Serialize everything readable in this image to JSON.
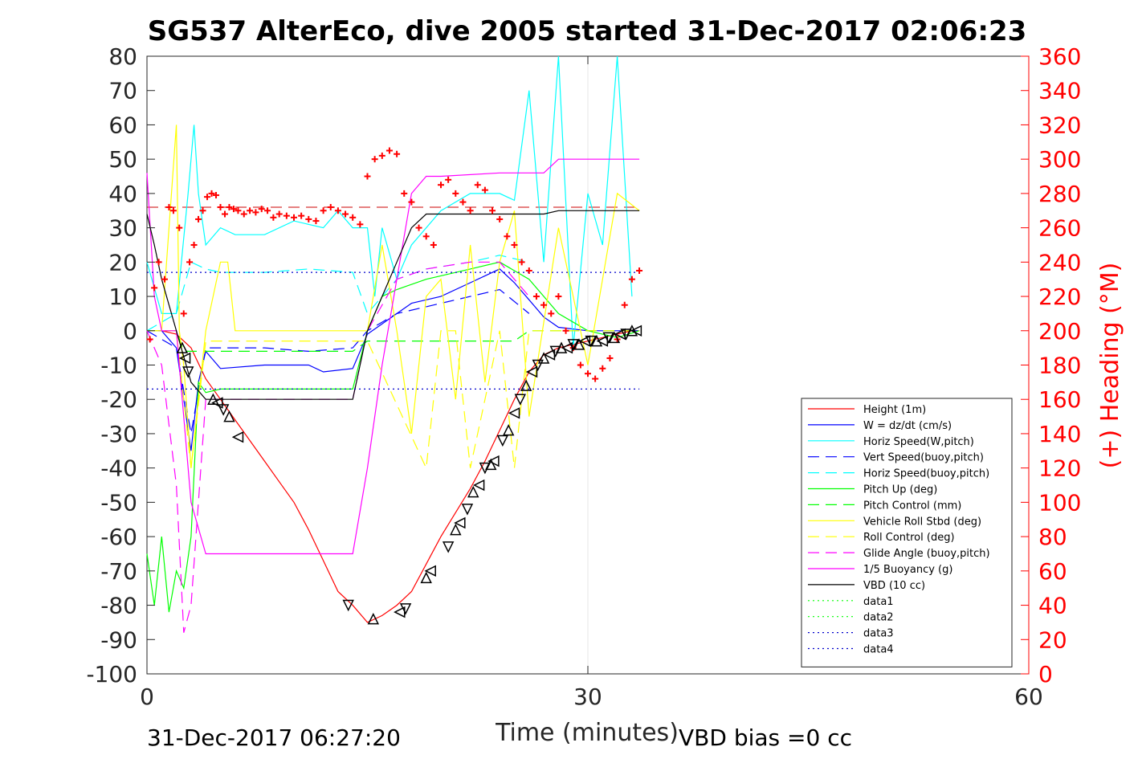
{
  "chart_data": {
    "type": "line",
    "title": "SG537 AlterEco, dive 2005 started 31-Dec-2017 02:06:23",
    "xlabel": "Time (minutes)",
    "ylabel_left": "",
    "ylabel_right": "(+) Heading (°M)",
    "xlim": [
      0,
      60
    ],
    "ylim_left": [
      -100,
      80
    ],
    "ylim_right": [
      0,
      360
    ],
    "x_ticks": [
      "0",
      "30",
      "60"
    ],
    "y_ticks_left": [
      "80",
      "70",
      "60",
      "50",
      "40",
      "30",
      "20",
      "10",
      "0",
      "-10",
      "-20",
      "-30",
      "-40",
      "-50",
      "-60",
      "-70",
      "-80",
      "-90",
      "-100"
    ],
    "y_ticks_right": [
      "360",
      "340",
      "320",
      "300",
      "280",
      "260",
      "240",
      "220",
      "200",
      "180",
      "160",
      "140",
      "120",
      "100",
      "80",
      "60",
      "40",
      "20",
      "0"
    ],
    "grid": "x-only",
    "footer_left": "31-Dec-2017 06:27:20",
    "footer_right": "VBD bias =0 cc",
    "legend_position": "lower-right",
    "series": [
      {
        "name": "Height (1m)",
        "color": "#ff0000",
        "style": "solid",
        "x": [
          0,
          1,
          2,
          3,
          4,
          5,
          6,
          7,
          8,
          9,
          10,
          11,
          12,
          13,
          14,
          15,
          16,
          17,
          18,
          19,
          20,
          21,
          22,
          23,
          24,
          25,
          26,
          27,
          28,
          29,
          30,
          31,
          32,
          33,
          33.5
        ],
        "y": [
          0,
          0,
          -1,
          -5,
          -14,
          -20,
          -26,
          -32,
          -38,
          -44,
          -50,
          -58,
          -67,
          -76,
          -80,
          -85,
          -83,
          -80,
          -76,
          -68,
          -60,
          -53,
          -46,
          -38,
          -29,
          -20,
          -12,
          -7,
          -5,
          -4,
          -3,
          -2,
          -1,
          0,
          0
        ]
      },
      {
        "name": "W = dz/dt (cm/s)",
        "color": "#0000ff",
        "style": "solid",
        "x": [
          0,
          1,
          2,
          2.5,
          3,
          3.5,
          4,
          5,
          8,
          11,
          12,
          14,
          15,
          16,
          17,
          18,
          20,
          22,
          24,
          25,
          26,
          27,
          28,
          30,
          32,
          33.5
        ],
        "y": [
          0,
          0,
          -5,
          -20,
          -35,
          -15,
          -6,
          -11,
          -10,
          -10,
          -12,
          -11,
          -1,
          2,
          5,
          8,
          10,
          14,
          18,
          14,
          9,
          4,
          1,
          0,
          0,
          0
        ]
      },
      {
        "name": "Horiz Speed(W,pitch)",
        "color": "#00ffff",
        "style": "solid",
        "x": [
          0,
          1,
          2,
          2.8,
          3.2,
          3.5,
          4,
          5,
          6,
          8,
          10,
          12,
          13,
          14,
          15,
          15.5,
          16,
          17,
          18,
          20,
          22,
          24,
          25,
          26,
          27,
          28,
          29,
          30,
          31,
          32,
          33
        ],
        "y": [
          20,
          5,
          5,
          40,
          60,
          40,
          25,
          30,
          28,
          28,
          32,
          30,
          35,
          30,
          30,
          10,
          30,
          15,
          25,
          35,
          40,
          40,
          38,
          70,
          20,
          80,
          -5,
          40,
          25,
          80,
          10
        ]
      },
      {
        "name": "Vert Speed(buoy,pitch)",
        "color": "#0000ff",
        "style": "dashed",
        "x": [
          0,
          2,
          3,
          4,
          5,
          8,
          11,
          14,
          15,
          17,
          19,
          22,
          24,
          26
        ],
        "y": [
          0,
          -5,
          -30,
          -5,
          -5,
          -5,
          -6,
          -5,
          0,
          5,
          7,
          10,
          12,
          5
        ]
      },
      {
        "name": "Horiz Speed(buoy,pitch)",
        "color": "#00ffff",
        "style": "dashed",
        "x": [
          0,
          2,
          3,
          4,
          5,
          8,
          11,
          14,
          15,
          17,
          19,
          22,
          24,
          26
        ],
        "y": [
          0,
          5,
          20,
          18,
          17,
          17,
          18,
          17,
          5,
          15,
          18,
          20,
          22,
          20
        ]
      },
      {
        "name": "Pitch Up (deg)",
        "color": "#00ff00",
        "style": "solid",
        "x": [
          0,
          0.5,
          1,
          1.5,
          2,
          2.5,
          3,
          3.5,
          4,
          5,
          8,
          11,
          14,
          15,
          16,
          17,
          19,
          22,
          24,
          26,
          28,
          30,
          32,
          33.5
        ],
        "y": [
          -65,
          -80,
          -60,
          -82,
          -70,
          -75,
          -60,
          -15,
          -18,
          -17,
          -17,
          -17,
          -17,
          0,
          10,
          12,
          15,
          18,
          20,
          15,
          5,
          0,
          -2,
          0
        ]
      },
      {
        "name": "Pitch Control (mm)",
        "color": "#00ff00",
        "style": "dashed",
        "x": [
          0,
          2,
          2.5,
          3,
          3.5,
          4,
          14,
          15,
          16,
          25,
          26,
          33.5
        ],
        "y": [
          0,
          0,
          -6,
          -6,
          -6,
          -6,
          -6,
          -3,
          -3,
          -3,
          0,
          0
        ]
      },
      {
        "name": "Vehicle Roll Stbd (deg)",
        "color": "#ffff00",
        "style": "solid",
        "x": [
          0,
          1,
          2,
          2.2,
          2.5,
          3,
          4,
          5,
          5.5,
          6,
          8,
          11,
          14,
          15,
          16,
          17,
          18,
          19,
          20,
          21,
          22,
          23,
          24,
          25,
          26,
          28,
          30,
          32,
          33.5
        ],
        "y": [
          0,
          0,
          60,
          0,
          -10,
          -40,
          0,
          20,
          20,
          0,
          0,
          0,
          0,
          0,
          25,
          0,
          -30,
          10,
          15,
          -20,
          25,
          -15,
          20,
          35,
          -25,
          30,
          -10,
          40,
          35
        ]
      },
      {
        "name": "Roll Control (deg)",
        "color": "#ffff00",
        "style": "dashed",
        "x": [
          0,
          2,
          3,
          4,
          14,
          15,
          19,
          20,
          21,
          22,
          24,
          25,
          26,
          33.5
        ],
        "y": [
          0,
          0,
          -40,
          -3,
          -3,
          -3,
          -40,
          0,
          0,
          -40,
          0,
          -40,
          0,
          0
        ]
      },
      {
        "name": "Glide Angle (buoy,pitch)",
        "color": "#ff00ff",
        "style": "dashed",
        "x": [
          0,
          1,
          2,
          2.5,
          3,
          4,
          8,
          11,
          14,
          15,
          17,
          19,
          22,
          24,
          26
        ],
        "y": [
          0,
          -10,
          -45,
          -88,
          -80,
          -20,
          -20,
          -20,
          -20,
          0,
          15,
          18,
          20,
          20,
          10
        ]
      },
      {
        "name": "1/5 Buoyancy (g)",
        "color": "#ff00ff",
        "style": "solid",
        "x": [
          0,
          0.5,
          1,
          2,
          3,
          4,
          6,
          10,
          14,
          15,
          16,
          18,
          19,
          20,
          24,
          27,
          28,
          30,
          33.5
        ],
        "y": [
          46,
          10,
          0,
          0,
          -50,
          -65,
          -65,
          -65,
          -65,
          -40,
          -10,
          40,
          45,
          45,
          46,
          46,
          50,
          50,
          50
        ]
      },
      {
        "name": "VBD (10 cc)",
        "color": "#000000",
        "style": "solid",
        "x": [
          0,
          0.5,
          1,
          2,
          3,
          4,
          6,
          10,
          14,
          15,
          16,
          17,
          18,
          19,
          20,
          25,
          27,
          28,
          30,
          33.5
        ],
        "y": [
          34,
          25,
          15,
          0,
          -15,
          -20,
          -20,
          -20,
          -20,
          0,
          10,
          20,
          30,
          34,
          34,
          34,
          34,
          35,
          35,
          35
        ]
      },
      {
        "name": "data1",
        "color": "#00ff00",
        "style": "dotted",
        "x": [],
        "y": []
      },
      {
        "name": "data2",
        "color": "#00ff00",
        "style": "dotted",
        "x": [],
        "y": []
      },
      {
        "name": "data3",
        "color": "#0000cc",
        "style": "dotted",
        "x": [
          0,
          33.5
        ],
        "y": [
          -17,
          -17
        ]
      },
      {
        "name": "data4",
        "color": "#0000cc",
        "style": "dotted",
        "x": [
          0,
          33.5
        ],
        "y": [
          17,
          17
        ]
      }
    ],
    "reference_lines": [
      {
        "axis": "right",
        "value": 272,
        "color": "#cc0000",
        "style": "dashed",
        "x": [
          0,
          33.5
        ]
      }
    ],
    "heading_points": {
      "color": "#ff0000",
      "axis": "right",
      "x": [
        0.2,
        0.5,
        0.8,
        1.2,
        1.5,
        1.8,
        2.2,
        2.5,
        2.9,
        3.2,
        3.5,
        3.8,
        4.1,
        4.4,
        4.7,
        5.0,
        5.3,
        5.6,
        5.9,
        6.2,
        6.6,
        7.0,
        7.4,
        7.8,
        8.2,
        8.6,
        9.0,
        9.5,
        10,
        10.5,
        11,
        11.5,
        12,
        12.5,
        13,
        13.5,
        14,
        14.5,
        15,
        15.5,
        16,
        16.5,
        17,
        17.5,
        18,
        18.5,
        19,
        19.5,
        20,
        20.5,
        21,
        21.5,
        22,
        22.5,
        23,
        23.5,
        24,
        24.5,
        25,
        25.5,
        26,
        26.5,
        27,
        27.5,
        28,
        28.5,
        29,
        29.5,
        30,
        30.5,
        31,
        31.5,
        32,
        32.5,
        33,
        33.5
      ],
      "y": [
        195,
        225,
        240,
        230,
        272,
        270,
        260,
        210,
        240,
        250,
        265,
        270,
        278,
        280,
        279,
        272,
        268,
        272,
        271,
        270,
        268,
        270,
        269,
        271,
        270,
        266,
        268,
        267,
        266,
        267,
        265,
        264,
        270,
        272,
        270,
        268,
        266,
        262,
        290,
        300,
        302,
        305,
        303,
        280,
        275,
        260,
        255,
        250,
        285,
        288,
        280,
        275,
        270,
        285,
        282,
        270,
        265,
        255,
        250,
        240,
        235,
        220,
        215,
        210,
        220,
        200,
        190,
        180,
        175,
        172,
        178,
        184,
        195,
        215,
        230,
        235
      ]
    },
    "marker_points": {
      "color": "#000000",
      "x": [
        2.4,
        2.6,
        2.8,
        4.5,
        4.8,
        5.2,
        5.6,
        6.2,
        13.7,
        15.4,
        17.2,
        17.6,
        19.0,
        19.3,
        20.5,
        21.0,
        21.3,
        21.8,
        22.2,
        22.6,
        23.0,
        23.4,
        23.6,
        24.2,
        24.6,
        25.0,
        25.4,
        25.8,
        26.2,
        26.6,
        27.0,
        27.4,
        27.8,
        28.2,
        28.6,
        29.0,
        29.4,
        29.8,
        30.2,
        30.6,
        31.0,
        31.4,
        31.8,
        32.2,
        32.6,
        33.0,
        33.3
      ],
      "y": [
        -5,
        -8,
        -12,
        -20,
        -21,
        -23,
        -25,
        -31,
        -80,
        -84,
        -82,
        -81,
        -72,
        -70,
        -63,
        -58,
        -56,
        -52,
        -47,
        -45,
        -40,
        -39,
        -38,
        -32,
        -29,
        -24,
        -20,
        -16,
        -12,
        -10,
        -8,
        -7,
        -6,
        -5,
        -5,
        -4,
        -4,
        -3,
        -3,
        -3,
        -3,
        -2,
        -2,
        -1,
        -1,
        0,
        0
      ]
    }
  }
}
